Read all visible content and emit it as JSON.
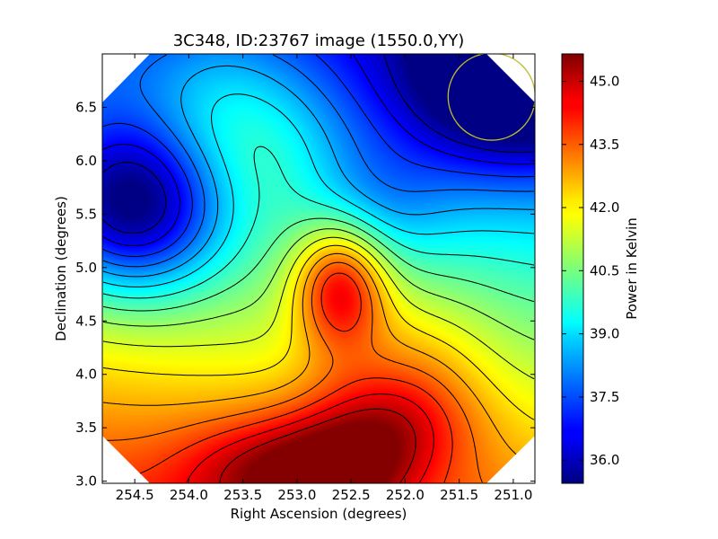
{
  "chart_data": {
    "type": "heatmap",
    "title": "3C348, ID:23767 image (1550.0,YY)",
    "xlabel": "Right Ascension (degrees)",
    "ylabel": "Declination (degrees)",
    "xlim": [
      254.8,
      250.8
    ],
    "ylim": [
      2.98,
      7.0
    ],
    "x_inverted": true,
    "x_ticks": [
      "254.5",
      "254.0",
      "253.5",
      "253.0",
      "252.5",
      "252.0",
      "251.5",
      "251.0"
    ],
    "x_tick_values": [
      254.5,
      254.0,
      253.5,
      253.0,
      252.5,
      252.0,
      251.5,
      251.0
    ],
    "y_ticks": [
      "3.0",
      "3.5",
      "4.0",
      "4.5",
      "5.0",
      "5.5",
      "6.0",
      "6.5"
    ],
    "y_tick_values": [
      3.0,
      3.5,
      4.0,
      4.5,
      5.0,
      5.5,
      6.0,
      6.5
    ],
    "grid": false,
    "colormap": "jet",
    "colorbar": {
      "label": "Power in Kelvin",
      "range": [
        35.45,
        45.65
      ],
      "ticks": [
        "36.0",
        "37.5",
        "39.0",
        "40.5",
        "42.0",
        "43.5",
        "45.0"
      ],
      "tick_values": [
        36.0,
        37.5,
        39.0,
        40.5,
        42.0,
        43.5,
        45.0
      ]
    },
    "contours": {
      "color": "#000000",
      "count": 16
    },
    "features": [
      {
        "kind": "minimum",
        "ra": 254.5,
        "dec": 5.55,
        "value": 35.6
      },
      {
        "kind": "minimum",
        "ra": 251.0,
        "dec": 6.7,
        "value": 36.1
      },
      {
        "kind": "maximum",
        "ra": 252.6,
        "dec": 4.83,
        "value": 44.5
      },
      {
        "kind": "maximum",
        "ra": 252.2,
        "dec": 3.5,
        "value": 45.3
      },
      {
        "kind": "maximum",
        "ra": 253.2,
        "dec": 3.1,
        "value": 45.1
      },
      {
        "kind": "maximum",
        "ra": 252.6,
        "dec": 3.05,
        "value": 45.0
      }
    ],
    "beam": {
      "ra": 251.2,
      "dec": 6.6,
      "radius_deg": 0.33,
      "color": "#bdbd2b"
    }
  }
}
